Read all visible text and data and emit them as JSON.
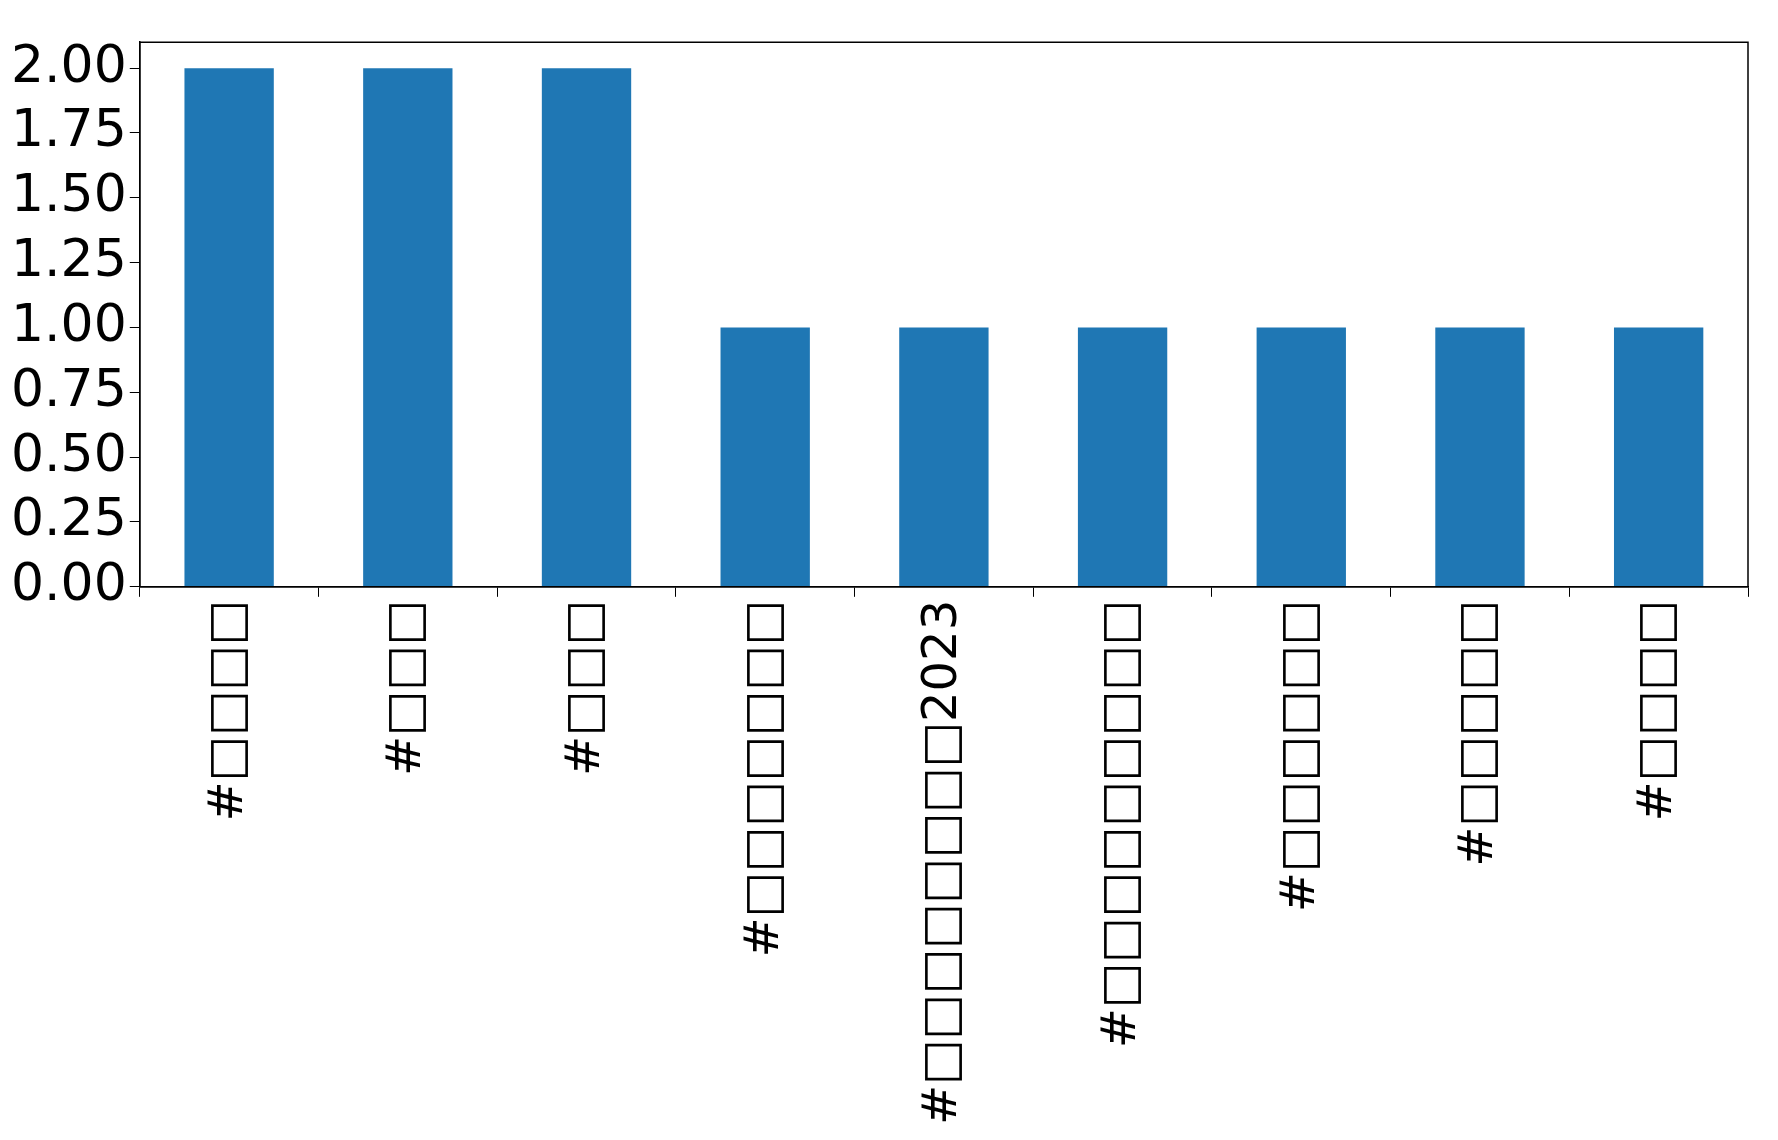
{
  "chart_data": {
    "type": "bar",
    "categories": [
      "#□□□□",
      "#□□□",
      "#□□□",
      "#□□□□□□□",
      "#□□□□□□□□2023",
      "#□□□□□□□□□",
      "#□□□□□□",
      "#□□□□□",
      "#□□□□"
    ],
    "values": [
      2,
      2,
      2,
      1,
      1,
      1,
      1,
      1,
      1
    ],
    "color": "#1f77b4",
    "ylim": [
      0,
      2.1
    ],
    "yticks": [
      {
        "value": 0,
        "label": "0.00"
      },
      {
        "value": 0.25,
        "label": "0.25"
      },
      {
        "value": 0.5,
        "label": "0.50"
      },
      {
        "value": 0.75,
        "label": "0.75"
      },
      {
        "value": 1,
        "label": "1.00"
      },
      {
        "value": 1.25,
        "label": "1.25"
      },
      {
        "value": 1.5,
        "label": "1.50"
      },
      {
        "value": 1.75,
        "label": "1.75"
      },
      {
        "value": 2,
        "label": "2.00"
      }
    ],
    "grid": false,
    "legend": false
  }
}
